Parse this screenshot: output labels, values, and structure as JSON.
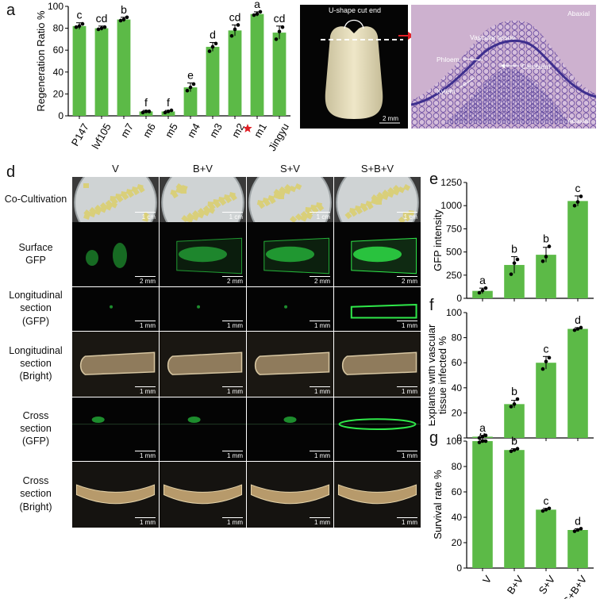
{
  "panels": {
    "a": "a",
    "b": "b",
    "c": "c",
    "d": "d",
    "e": "e",
    "f": "f",
    "g": "g"
  },
  "colors": {
    "bar": "#5cba47",
    "bar_edge": "#3f8f2f",
    "star": "#e01f26",
    "gfp": "#2fe84a"
  },
  "photo_b": {
    "label": "U-shape cut end",
    "scale": "2 mm"
  },
  "photo_c": {
    "abaxial": "Abaxial",
    "adaxial": "Adaxial",
    "vascular": "Vascular tissue",
    "phloem": "Phloem",
    "cambium": "Cambium",
    "xylem": "Xylem"
  },
  "grid_d": {
    "columns": [
      "V",
      "B+V",
      "S+V",
      "S+B+V"
    ],
    "rows": [
      {
        "label": "Co-Cultivation",
        "scale": "1 cm"
      },
      {
        "label": "Surface\nGFP",
        "scale": "2 mm"
      },
      {
        "label": "Longitudinal\nsection\n(GFP)",
        "scale": "1 mm"
      },
      {
        "label": "Longitudinal\nsection\n(Bright)",
        "scale": "1 mm"
      },
      {
        "label": "Cross\nsection\n(GFP)",
        "scale": "1 mm"
      },
      {
        "label": "Cross\nsection\n(Bright)",
        "scale": "1 mm"
      }
    ]
  },
  "chart_data": [
    {
      "id": "a",
      "type": "bar",
      "ylabel": "Regeneration Ratio %",
      "ylim": [
        0,
        100
      ],
      "yticks": [
        0,
        20,
        40,
        60,
        80,
        100
      ],
      "categories": [
        "P147",
        "lvf105",
        "m7",
        "m6",
        "m5",
        "m4",
        "m3",
        "m2",
        "m1",
        "Jingyu"
      ],
      "values": [
        82,
        80,
        88,
        4,
        4,
        26,
        63,
        78,
        93,
        76
      ],
      "errors": [
        3,
        2,
        2,
        1,
        1,
        4,
        4,
        5,
        2,
        6
      ],
      "letters": [
        "c",
        "cd",
        "b",
        "f",
        "f",
        "e",
        "d",
        "cd",
        "a",
        "cd"
      ],
      "points": [
        [
          81,
          82,
          84
        ],
        [
          79,
          80,
          81
        ],
        [
          87,
          88,
          90
        ],
        [
          3,
          4,
          4
        ],
        [
          3,
          4,
          5
        ],
        [
          23,
          26,
          29
        ],
        [
          59,
          63,
          66
        ],
        [
          73,
          79,
          83
        ],
        [
          92,
          93,
          95
        ],
        [
          70,
          77,
          81
        ]
      ],
      "marker_category": "m1"
    },
    {
      "id": "e",
      "type": "bar",
      "ylabel": "GFP intensity",
      "ylim": [
        0,
        1250
      ],
      "yticks": [
        0,
        250,
        500,
        750,
        1000,
        1250
      ],
      "categories": [
        "V",
        "B+V",
        "S+V",
        "S+B+V"
      ],
      "values": [
        80,
        360,
        470,
        1050
      ],
      "errors": [
        30,
        90,
        80,
        55
      ],
      "letters": [
        "a",
        "b",
        "b",
        "c"
      ],
      "points": [
        [
          60,
          85,
          110
        ],
        [
          260,
          380,
          420
        ],
        [
          400,
          450,
          560
        ],
        [
          1000,
          1040,
          1100
        ]
      ]
    },
    {
      "id": "f",
      "type": "bar",
      "ylabel": "Explants with vascular tissue infected %",
      "ylim": [
        0,
        100
      ],
      "yticks": [
        0,
        20,
        40,
        60,
        80,
        100
      ],
      "categories": [
        "V",
        "B+V",
        "S+V",
        "S+B+V"
      ],
      "values": [
        1,
        27,
        60,
        87
      ],
      "errors": [
        1,
        3,
        5,
        1
      ],
      "letters": [
        "a",
        "b",
        "c",
        "d"
      ],
      "points": [
        [
          0,
          1,
          2
        ],
        [
          25,
          27,
          31
        ],
        [
          55,
          61,
          64
        ],
        [
          86,
          87,
          88
        ]
      ]
    },
    {
      "id": "g",
      "type": "bar",
      "ylabel": "Survival rate %",
      "ylim": [
        0,
        100
      ],
      "yticks": [
        0,
        20,
        40,
        60,
        80,
        100
      ],
      "categories": [
        "V",
        "B+V",
        "S+V",
        "S+B+V"
      ],
      "values": [
        100,
        93,
        46,
        30
      ],
      "errors": [
        1,
        1,
        1,
        1
      ],
      "letters": [
        "a",
        "b",
        "c",
        "d"
      ],
      "points": [
        [
          99,
          100,
          100
        ],
        [
          92,
          93,
          94
        ],
        [
          45,
          46,
          47
        ],
        [
          29,
          30,
          31
        ]
      ]
    }
  ]
}
